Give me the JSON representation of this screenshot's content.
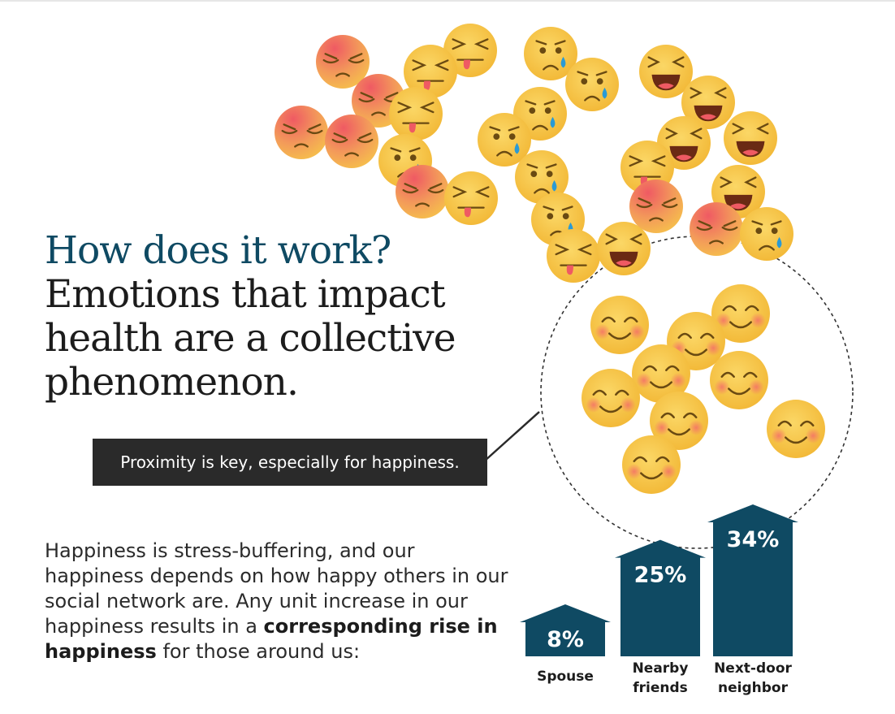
{
  "heading": {
    "question": "How does it work?",
    "statement": "Emotions that impact health are a collective phenomenon."
  },
  "callout": "Proximity is key, especially for happiness.",
  "body": {
    "part1": "Happiness is stress-buffering, and our happiness depends on how happy others in our social network are. Any unit increase in our happiness results in a ",
    "bold": "corresponding rise in happiness",
    "part2": " for those around us:"
  },
  "chart_data": {
    "type": "bar",
    "categories": [
      "Spouse",
      "Nearby friends",
      "Next-door neighbor"
    ],
    "values": [
      8,
      25,
      34
    ],
    "value_labels": [
      "8%",
      "25%",
      "34%"
    ],
    "unit": "%",
    "bar_color": "#0f4a63"
  },
  "colors": {
    "heading_question": "#0f4a63",
    "heading_statement": "#1c1c1c",
    "callout_bg": "#2a2a2a",
    "emoji_yellow": "#f6c34a",
    "emoji_red": "#ef5a63"
  },
  "emojis": {
    "sad": [
      "sad-emoji",
      "sad-emoji",
      "sad-emoji",
      "sad-emoji",
      "sad-emoji",
      "sad-emoji",
      "sad-emoji"
    ],
    "silly": [
      "tongue-emoji",
      "tongue-emoji",
      "tongue-emoji",
      "tongue-emoji",
      "tongue-emoji",
      "tongue-emoji"
    ],
    "crying": [
      "crying-emoji",
      "crying-emoji",
      "crying-emoji",
      "crying-emoji",
      "crying-emoji",
      "crying-emoji",
      "crying-emoji",
      "crying-emoji"
    ],
    "laughing": [
      "laughing-emoji",
      "laughing-emoji",
      "laughing-emoji",
      "laughing-emoji",
      "laughing-emoji",
      "laughing-emoji"
    ],
    "happy": [
      "smile-emoji",
      "smile-emoji",
      "smile-emoji",
      "smile-emoji",
      "smile-emoji",
      "smile-emoji",
      "smile-emoji",
      "smile-emoji",
      "smile-emoji",
      "smile-emoji"
    ]
  }
}
